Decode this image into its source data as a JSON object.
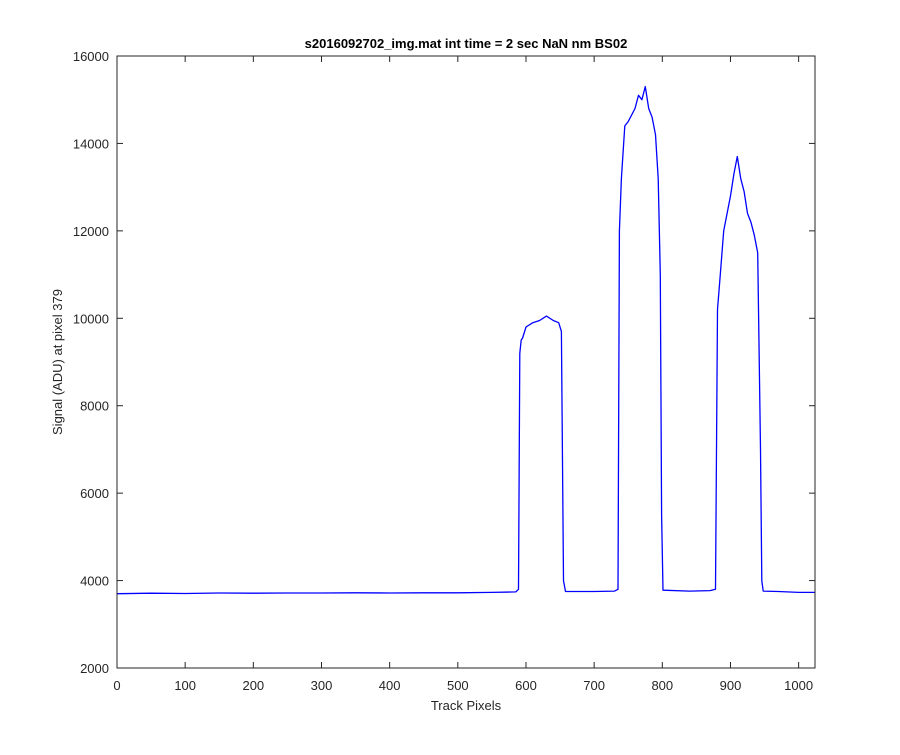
{
  "chart_data": {
    "type": "line",
    "title": "s2016092702_img.mat int time = 2 sec  NaN nm BS02",
    "xlabel": "Track Pixels",
    "ylabel": "Signal (ADU) at pixel 379",
    "xlim": [
      0,
      1024
    ],
    "ylim": [
      2000,
      16000
    ],
    "x_ticks": [
      0,
      100,
      200,
      300,
      400,
      500,
      600,
      700,
      800,
      900,
      1000
    ],
    "y_ticks": [
      2000,
      4000,
      6000,
      8000,
      10000,
      12000,
      14000,
      16000
    ],
    "grid": false,
    "line_color": "#0000ff",
    "series": [
      {
        "x": [
          0,
          50,
          100,
          150,
          200,
          250,
          300,
          350,
          400,
          450,
          500,
          550,
          585,
          589,
          591,
          593,
          595,
          600,
          610,
          620,
          630,
          640,
          648,
          652,
          655,
          658,
          700,
          730,
          735,
          737,
          740,
          745,
          750,
          760,
          765,
          770,
          775,
          780,
          785,
          790,
          794,
          797,
          799,
          801,
          840,
          870,
          878,
          881,
          884,
          890,
          900,
          905,
          910,
          915,
          920,
          925,
          930,
          935,
          940,
          944,
          946,
          948,
          970,
          1000,
          1024
        ],
        "y": [
          3700,
          3710,
          3705,
          3715,
          3710,
          3715,
          3715,
          3720,
          3715,
          3720,
          3720,
          3730,
          3740,
          3800,
          9200,
          9500,
          9550,
          9800,
          9900,
          9950,
          10050,
          9950,
          9900,
          9700,
          4000,
          3750,
          3750,
          3760,
          3800,
          12000,
          13200,
          14400,
          14500,
          14800,
          15100,
          15000,
          15300,
          14800,
          14600,
          14200,
          13200,
          11000,
          5500,
          3780,
          3760,
          3770,
          3800,
          10200,
          10800,
          12000,
          12800,
          13300,
          13700,
          13200,
          12900,
          12400,
          12200,
          11900,
          11500,
          7000,
          4000,
          3760,
          3750,
          3730,
          3730
        ]
      }
    ]
  }
}
